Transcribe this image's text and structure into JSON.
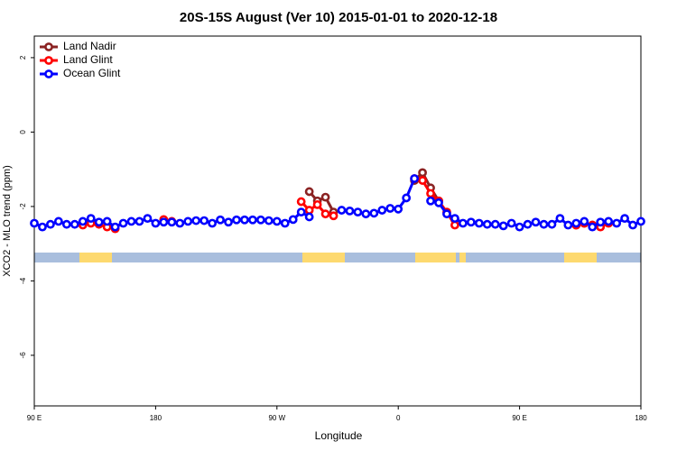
{
  "chart_data": {
    "type": "line",
    "title": "20S-15S August (Ver 10)   2015-01-01 to 2020-12-18",
    "x_label": "Longitude",
    "y_label": "XCO2 - MLO trend (ppm)",
    "xlim": [
      90,
      540
    ],
    "xticks": [
      {
        "value": 90,
        "label": "90 E"
      },
      {
        "value": 180,
        "label": "180"
      },
      {
        "value": 270,
        "label": "90 W"
      },
      {
        "value": 360,
        "label": "0"
      },
      {
        "value": 450,
        "label": "90 E"
      },
      {
        "value": 540,
        "label": "180"
      }
    ],
    "ylim": [
      -7.36,
      2.58
    ],
    "yticks": [
      -6,
      -4,
      -2,
      0,
      2
    ],
    "legend": "top-left",
    "grid": false,
    "x": [
      90,
      96,
      102,
      108,
      114,
      120,
      126,
      132,
      138,
      144,
      150,
      156,
      162,
      168,
      174,
      180,
      186,
      192,
      198,
      204,
      210,
      216,
      222,
      228,
      234,
      240,
      246,
      252,
      258,
      264,
      270,
      276,
      282,
      288,
      294,
      300,
      306,
      312,
      318,
      324,
      330,
      336,
      342,
      348,
      354,
      360,
      366,
      372,
      378,
      384,
      390,
      396,
      402,
      408,
      414,
      420,
      426,
      432,
      438,
      444,
      450,
      456,
      462,
      468,
      474,
      480,
      486,
      492,
      498,
      504,
      510,
      516,
      522,
      528,
      534,
      540
    ],
    "series": [
      {
        "name": "Land Nadir",
        "color": "#8b2323",
        "values": [
          null,
          null,
          null,
          null,
          null,
          null,
          null,
          null,
          null,
          null,
          null,
          null,
          null,
          null,
          null,
          null,
          null,
          null,
          null,
          null,
          null,
          null,
          null,
          null,
          null,
          null,
          null,
          null,
          null,
          null,
          null,
          null,
          null,
          null,
          -1.6,
          -1.85,
          -1.75,
          -2.15,
          null,
          null,
          null,
          null,
          null,
          null,
          null,
          null,
          null,
          -1.3,
          -1.09,
          -1.5,
          -1.85,
          null,
          -2.35,
          null,
          null,
          null,
          null,
          null,
          null,
          null,
          null,
          null,
          null,
          null,
          null,
          null,
          null,
          -2.5,
          -2.45,
          -2.5,
          null,
          null,
          null,
          null,
          null,
          null
        ]
      },
      {
        "name": "Land Glint",
        "color": "#ff0000",
        "values": [
          null,
          null,
          null,
          null,
          null,
          null,
          -2.5,
          -2.45,
          -2.48,
          -2.55,
          -2.6,
          null,
          null,
          null,
          null,
          null,
          -2.35,
          -2.4,
          null,
          null,
          null,
          null,
          null,
          null,
          null,
          null,
          null,
          null,
          null,
          null,
          null,
          null,
          null,
          -1.87,
          -2.1,
          -1.95,
          -2.2,
          -2.25,
          null,
          null,
          null,
          null,
          null,
          null,
          null,
          null,
          null,
          -1.25,
          -1.3,
          -1.65,
          -1.85,
          -2.15,
          -2.5,
          null,
          null,
          null,
          null,
          null,
          null,
          null,
          null,
          null,
          null,
          null,
          null,
          null,
          null,
          -2.5,
          -2.45,
          -2.5,
          -2.55,
          -2.45,
          null,
          null,
          null,
          null
        ]
      },
      {
        "name": "Ocean Glint",
        "color": "#0000ff",
        "values": [
          -2.45,
          -2.55,
          -2.48,
          -2.4,
          -2.48,
          -2.48,
          -2.4,
          -2.32,
          -2.42,
          -2.4,
          -2.55,
          -2.45,
          -2.4,
          -2.4,
          -2.32,
          -2.45,
          -2.42,
          -2.42,
          -2.45,
          -2.4,
          -2.38,
          -2.38,
          -2.45,
          -2.36,
          -2.42,
          -2.36,
          -2.36,
          -2.36,
          -2.36,
          -2.38,
          -2.4,
          -2.45,
          -2.35,
          -2.15,
          -2.28,
          null,
          null,
          null,
          -2.1,
          -2.12,
          -2.15,
          -2.2,
          -2.18,
          -2.1,
          -2.05,
          -2.07,
          -1.77,
          -1.25,
          null,
          -1.85,
          -1.9,
          -2.2,
          -2.32,
          -2.45,
          -2.42,
          -2.45,
          -2.48,
          -2.48,
          -2.52,
          -2.45,
          -2.55,
          -2.48,
          -2.42,
          -2.48,
          -2.48,
          -2.32,
          -2.5,
          -2.45,
          -2.4,
          -2.55,
          -2.42,
          -2.4,
          -2.45,
          -2.32,
          -2.5,
          -2.4
        ]
      }
    ]
  }
}
